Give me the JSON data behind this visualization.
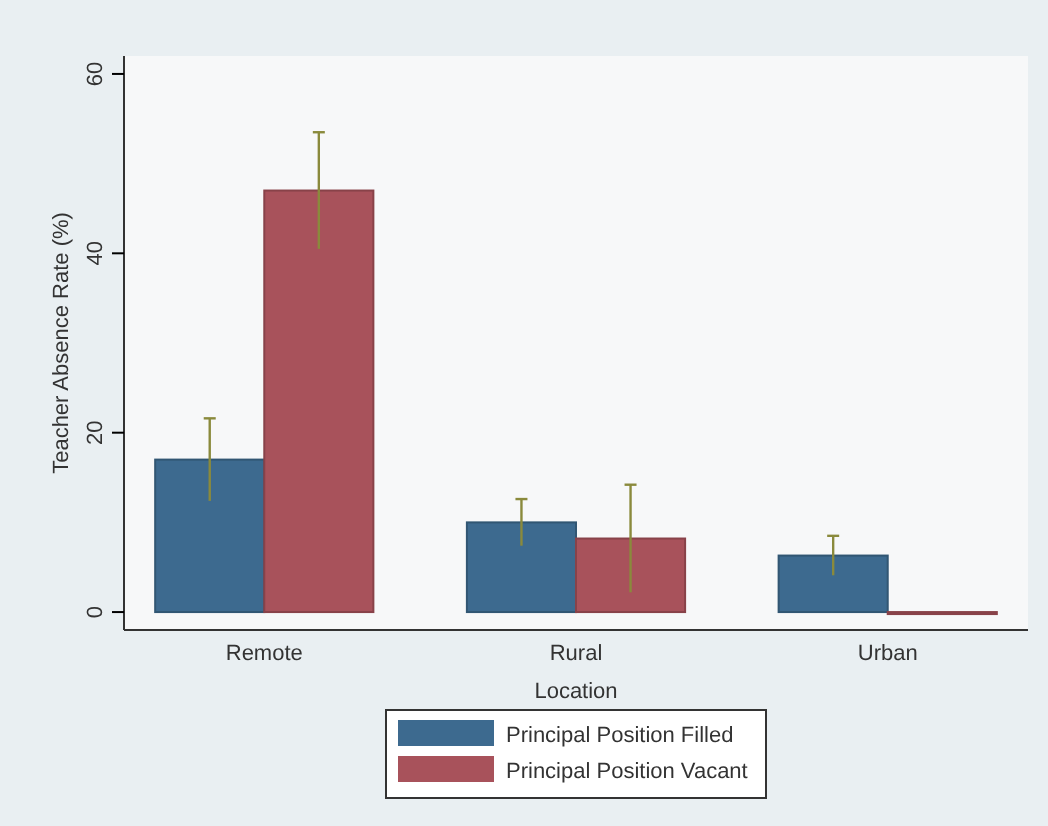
{
  "chart_data": {
    "type": "bar",
    "xlabel": "Location",
    "ylabel": "Teacher Absence Rate (%)",
    "categories": [
      "Remote",
      "Rural",
      "Urban"
    ],
    "series": [
      {
        "name": "Principal Position Filled",
        "color": "#3d6a8f",
        "values": [
          17.0,
          10.0,
          6.3
        ],
        "errors": [
          4.6,
          2.6,
          2.2
        ]
      },
      {
        "name": "Principal Position Vacant",
        "color": "#a8525b",
        "values": [
          47.0,
          8.2,
          0
        ],
        "errors": [
          6.5,
          6.0,
          null
        ]
      }
    ],
    "ylim": [
      -2,
      62
    ],
    "yticks": [
      0,
      20,
      40,
      60
    ],
    "grid": false,
    "legend": "bottom"
  }
}
